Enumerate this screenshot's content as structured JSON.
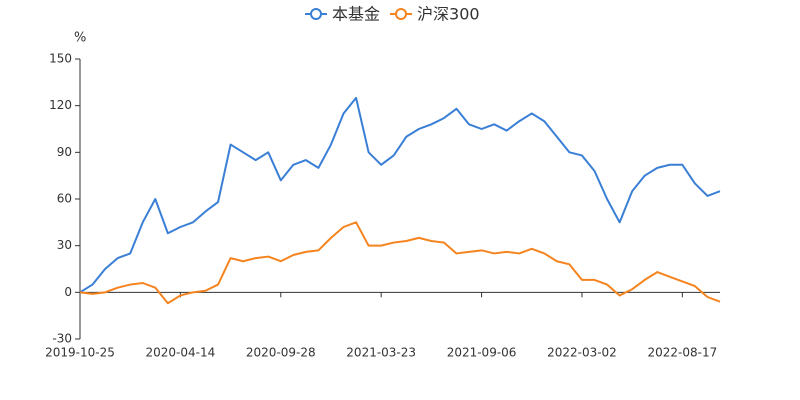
{
  "chart_data": {
    "type": "line",
    "y_label": "%",
    "categories": [
      "2019-10-25",
      null,
      null,
      null,
      null,
      null,
      null,
      null,
      "2020-04-14",
      null,
      null,
      null,
      null,
      null,
      null,
      null,
      "2020-09-28",
      null,
      null,
      null,
      null,
      null,
      null,
      null,
      "2021-03-23",
      null,
      null,
      null,
      null,
      null,
      null,
      null,
      "2021-09-06",
      null,
      null,
      null,
      null,
      null,
      null,
      null,
      "2022-03-02",
      null,
      null,
      null,
      null,
      null,
      null,
      null,
      "2022-08-17",
      null,
      null,
      null
    ],
    "series": [
      {
        "name": "本基金",
        "color": "#3a7fd6",
        "values": [
          0,
          5,
          15,
          22,
          25,
          45,
          60,
          38,
          42,
          45,
          52,
          58,
          95,
          90,
          85,
          90,
          72,
          82,
          85,
          80,
          95,
          115,
          125,
          90,
          82,
          88,
          100,
          105,
          108,
          112,
          118,
          108,
          105,
          108,
          104,
          110,
          115,
          110,
          100,
          90,
          88,
          78,
          60,
          45,
          65,
          75,
          80,
          82,
          82,
          70,
          62,
          65
        ]
      },
      {
        "name": "沪深300",
        "color": "#f5841f",
        "values": [
          0,
          -1,
          0,
          3,
          5,
          6,
          3,
          -7,
          -2,
          0,
          1,
          5,
          22,
          20,
          22,
          23,
          20,
          24,
          26,
          27,
          35,
          42,
          45,
          30,
          30,
          32,
          33,
          35,
          33,
          32,
          25,
          26,
          27,
          25,
          26,
          25,
          28,
          25,
          20,
          18,
          8,
          8,
          5,
          -2,
          2,
          8,
          13,
          10,
          7,
          4,
          -3,
          -6
        ]
      }
    ],
    "ylim": [
      -30,
      150
    ],
    "yticks": [
      -30,
      0,
      30,
      60,
      90,
      120,
      150
    ],
    "grid": false
  }
}
